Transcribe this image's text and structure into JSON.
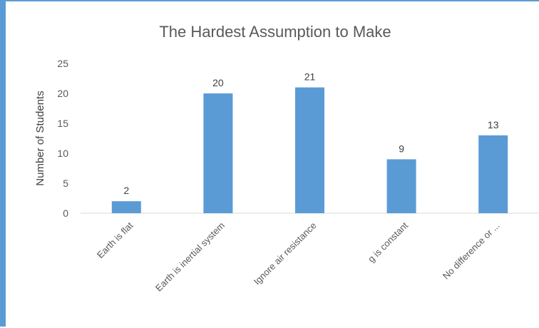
{
  "chart_data": {
    "type": "bar",
    "title": "The Hardest Assumption to Make",
    "xlabel": "",
    "ylabel": "Number of Students",
    "categories": [
      "Earth is flat",
      "Earth is inertial system",
      "Ignore air resistance",
      "g is constant",
      "No difference or ..."
    ],
    "values": [
      2,
      20,
      21,
      9,
      13
    ],
    "ylim": [
      0,
      25
    ],
    "yticks": [
      "0",
      "5",
      "10",
      "15",
      "20",
      "25"
    ],
    "data_labels": [
      "2",
      "20",
      "21",
      "9",
      "13"
    ],
    "grid": false,
    "legend": "none",
    "bar_color": "#5b9bd5",
    "border_color": "#5b9bd5"
  }
}
